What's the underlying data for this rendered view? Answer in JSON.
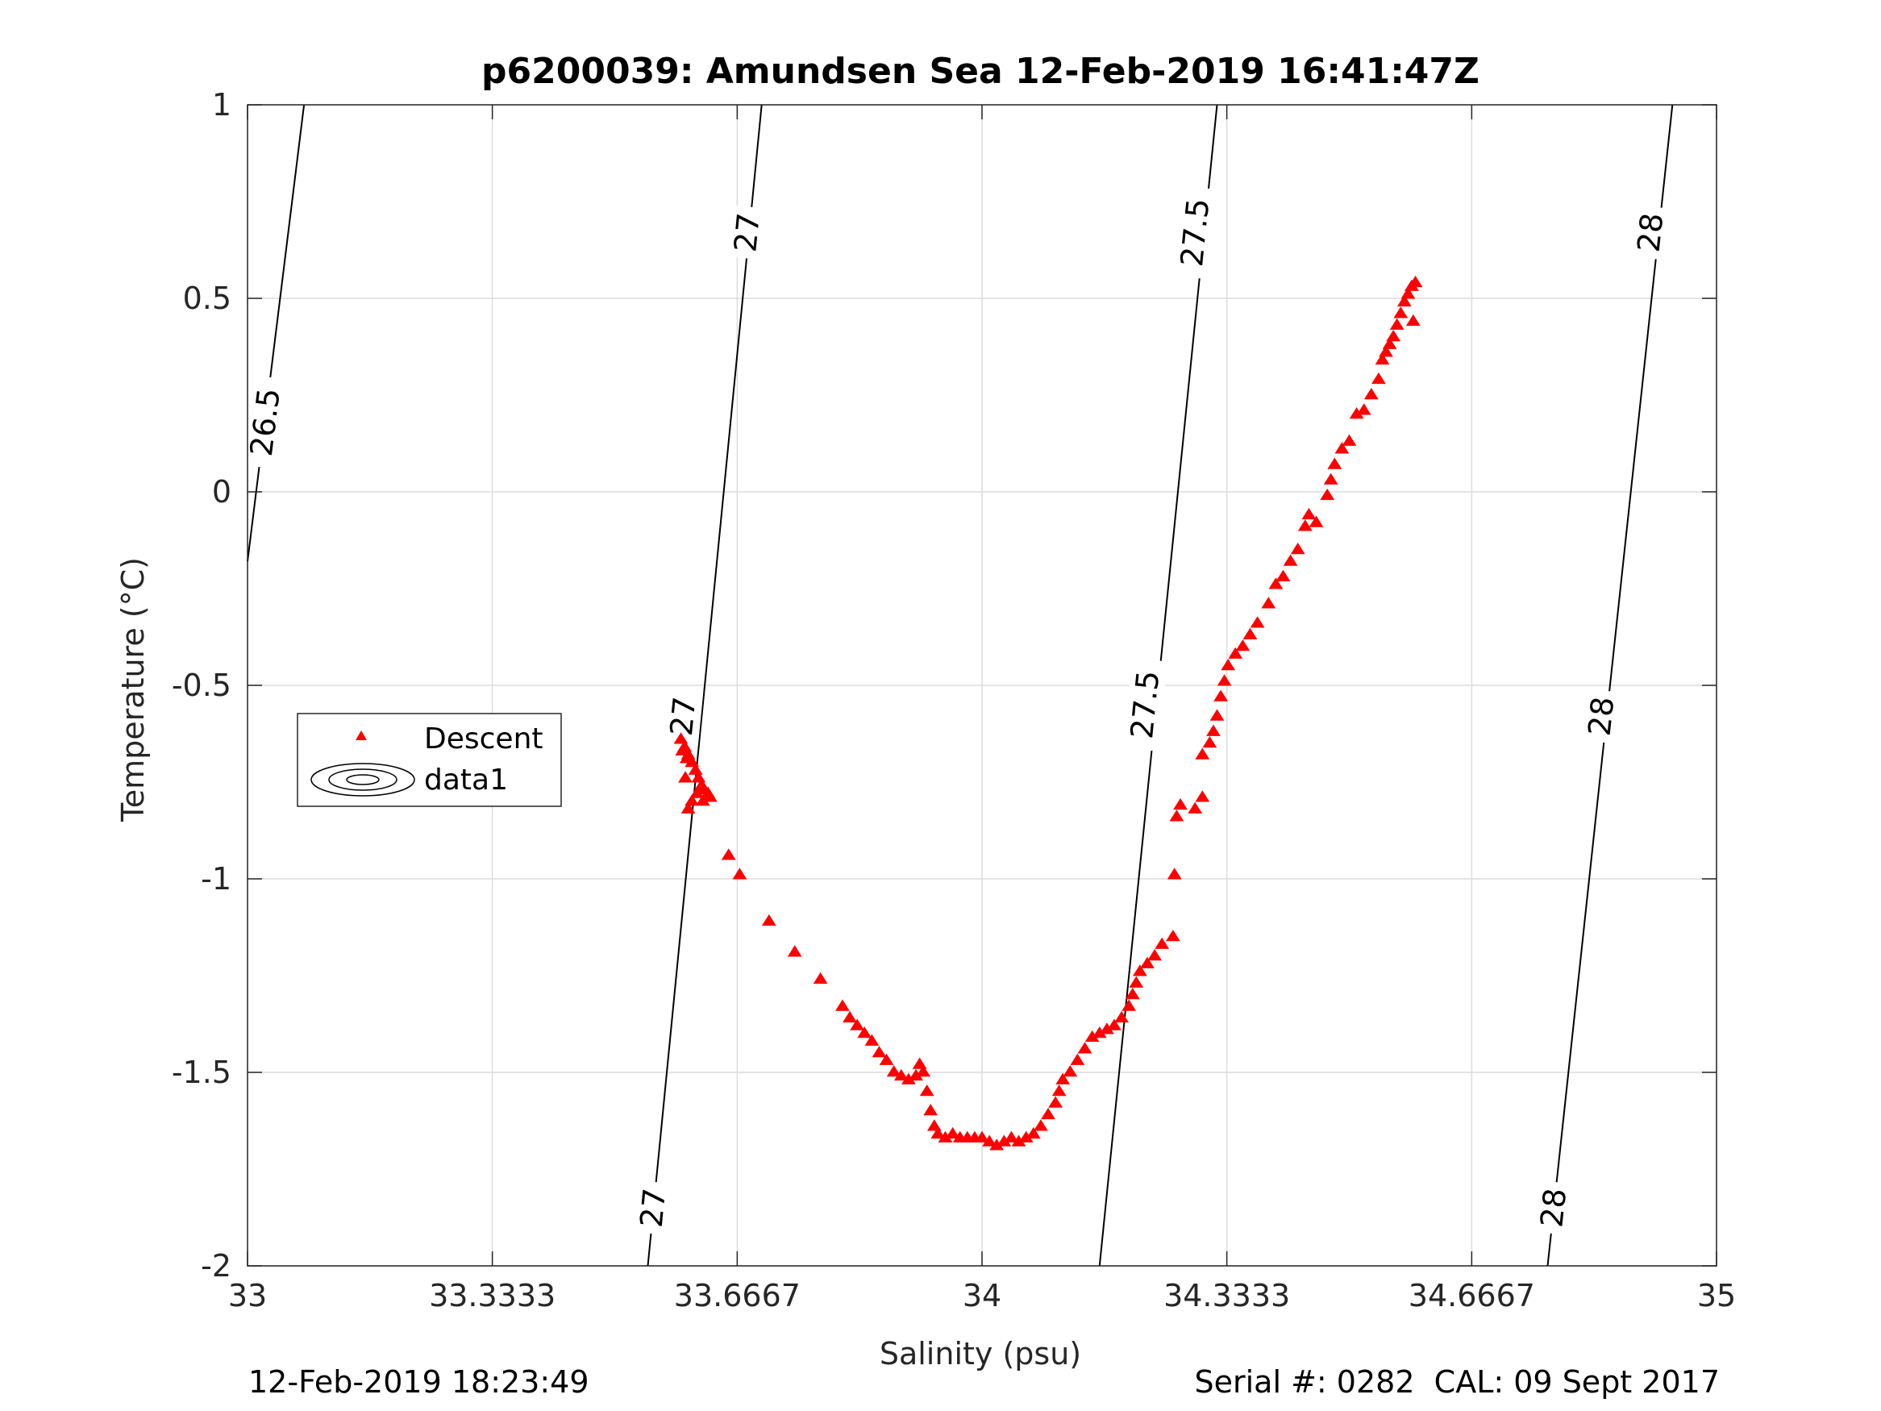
{
  "chart_data": {
    "type": "scatter",
    "title": "p6200039: Amundsen Sea 12-Feb-2019 16:41:47Z",
    "xlabel": "Salinity (psu)",
    "ylabel": "Temperature (°C)",
    "xlim": [
      33,
      35
    ],
    "ylim": [
      -2,
      1
    ],
    "xticks": [
      33,
      33.3333,
      33.6667,
      34,
      34.3333,
      34.6667,
      35
    ],
    "xtick_labels": [
      "33",
      "33.3333",
      "33.6667",
      "34",
      "34.3333",
      "34.6667",
      "35"
    ],
    "yticks": [
      -2,
      -1.5,
      -1,
      -0.5,
      0,
      0.5,
      1
    ],
    "ytick_labels": [
      "-2",
      "-1.5",
      "-1",
      "-0.5",
      "0",
      "0.5",
      "1"
    ],
    "grid": true,
    "legend": {
      "placement": "center-left",
      "entries": [
        "Descent",
        "data1"
      ]
    },
    "marker_color": "#ff0000",
    "series": [
      {
        "name": "Descent",
        "marker": "triangle",
        "points": [
          [
            33.59,
            -0.64
          ],
          [
            33.595,
            -0.66
          ],
          [
            33.6,
            -0.68
          ],
          [
            33.605,
            -0.7
          ],
          [
            33.61,
            -0.72
          ],
          [
            33.614,
            -0.74
          ],
          [
            33.618,
            -0.76
          ],
          [
            33.622,
            -0.77
          ],
          [
            33.627,
            -0.78
          ],
          [
            33.63,
            -0.79
          ],
          [
            33.62,
            -0.8
          ],
          [
            33.612,
            -0.78
          ],
          [
            33.605,
            -0.8
          ],
          [
            33.6,
            -0.82
          ],
          [
            33.596,
            -0.74
          ],
          [
            33.592,
            -0.67
          ],
          [
            33.598,
            -0.69
          ],
          [
            33.655,
            -0.94
          ],
          [
            33.67,
            -0.99
          ],
          [
            33.71,
            -1.11
          ],
          [
            33.745,
            -1.19
          ],
          [
            33.78,
            -1.26
          ],
          [
            33.81,
            -1.33
          ],
          [
            33.82,
            -1.36
          ],
          [
            33.83,
            -1.38
          ],
          [
            33.84,
            -1.4
          ],
          [
            33.85,
            -1.42
          ],
          [
            33.86,
            -1.45
          ],
          [
            33.87,
            -1.47
          ],
          [
            33.88,
            -1.5
          ],
          [
            33.89,
            -1.51
          ],
          [
            33.9,
            -1.52
          ],
          [
            33.91,
            -1.51
          ],
          [
            33.915,
            -1.48
          ],
          [
            33.92,
            -1.5
          ],
          [
            33.925,
            -1.55
          ],
          [
            33.93,
            -1.6
          ],
          [
            33.935,
            -1.64
          ],
          [
            33.94,
            -1.66
          ],
          [
            33.95,
            -1.67
          ],
          [
            33.96,
            -1.66
          ],
          [
            33.97,
            -1.67
          ],
          [
            33.98,
            -1.67
          ],
          [
            33.99,
            -1.67
          ],
          [
            34.0,
            -1.67
          ],
          [
            34.01,
            -1.68
          ],
          [
            34.02,
            -1.69
          ],
          [
            34.03,
            -1.68
          ],
          [
            34.04,
            -1.67
          ],
          [
            34.05,
            -1.68
          ],
          [
            34.06,
            -1.67
          ],
          [
            34.07,
            -1.66
          ],
          [
            34.08,
            -1.64
          ],
          [
            34.09,
            -1.61
          ],
          [
            34.1,
            -1.58
          ],
          [
            34.105,
            -1.55
          ],
          [
            34.11,
            -1.52
          ],
          [
            34.12,
            -1.5
          ],
          [
            34.13,
            -1.47
          ],
          [
            34.14,
            -1.44
          ],
          [
            34.15,
            -1.41
          ],
          [
            34.16,
            -1.4
          ],
          [
            34.17,
            -1.39
          ],
          [
            34.18,
            -1.38
          ],
          [
            34.19,
            -1.36
          ],
          [
            34.2,
            -1.33
          ],
          [
            34.205,
            -1.3
          ],
          [
            34.21,
            -1.27
          ],
          [
            34.215,
            -1.24
          ],
          [
            34.225,
            -1.22
          ],
          [
            34.235,
            -1.2
          ],
          [
            34.245,
            -1.17
          ],
          [
            34.26,
            -1.15
          ],
          [
            34.262,
            -0.99
          ],
          [
            34.265,
            -0.84
          ],
          [
            34.27,
            -0.81
          ],
          [
            34.29,
            -0.82
          ],
          [
            34.3,
            -0.79
          ],
          [
            34.3,
            -0.68
          ],
          [
            34.31,
            -0.65
          ],
          [
            34.315,
            -0.62
          ],
          [
            34.32,
            -0.58
          ],
          [
            34.325,
            -0.53
          ],
          [
            34.33,
            -0.49
          ],
          [
            34.335,
            -0.45
          ],
          [
            34.345,
            -0.42
          ],
          [
            34.355,
            -0.4
          ],
          [
            34.365,
            -0.37
          ],
          [
            34.375,
            -0.34
          ],
          [
            34.39,
            -0.29
          ],
          [
            34.4,
            -0.24
          ],
          [
            34.41,
            -0.22
          ],
          [
            34.42,
            -0.18
          ],
          [
            34.43,
            -0.15
          ],
          [
            34.44,
            -0.09
          ],
          [
            34.445,
            -0.06
          ],
          [
            34.455,
            -0.08
          ],
          [
            34.47,
            -0.01
          ],
          [
            34.475,
            0.03
          ],
          [
            34.48,
            0.07
          ],
          [
            34.49,
            0.11
          ],
          [
            34.5,
            0.13
          ],
          [
            34.51,
            0.2
          ],
          [
            34.52,
            0.21
          ],
          [
            34.53,
            0.25
          ],
          [
            34.54,
            0.29
          ],
          [
            34.545,
            0.34
          ],
          [
            34.55,
            0.36
          ],
          [
            34.555,
            0.38
          ],
          [
            34.56,
            0.4
          ],
          [
            34.565,
            0.43
          ],
          [
            34.57,
            0.46
          ],
          [
            34.575,
            0.49
          ],
          [
            34.58,
            0.51
          ],
          [
            34.585,
            0.53
          ],
          [
            34.59,
            0.54
          ],
          [
            34.587,
            0.44
          ]
        ]
      }
    ],
    "contours": [
      {
        "label": "26.5",
        "segments": [
          [
            [
              33.0,
              -0.18
            ],
            [
              33.077,
              1.0
            ]
          ]
        ],
        "labels_at": [
          [
            33.024,
            0.18
          ]
        ]
      },
      {
        "label": "27",
        "segments": [
          [
            [
              33.545,
              -2.0
            ],
            [
              33.7,
              1.0
            ]
          ]
        ],
        "labels_at": [
          [
            33.68,
            0.67
          ],
          [
            33.593,
            -0.58
          ],
          [
            33.552,
            -1.85
          ]
        ]
      },
      {
        "label": "27.5",
        "segments": [
          [
            [
              34.16,
              -2.0
            ],
            [
              34.32,
              1.0
            ]
          ]
        ],
        "labels_at": [
          [
            34.29,
            0.67
          ],
          [
            34.222,
            -0.55
          ]
        ]
      },
      {
        "label": "28",
        "segments": [
          [
            [
              34.77,
              -2.0
            ],
            [
              34.94,
              1.0
            ]
          ]
        ],
        "labels_at": [
          [
            34.91,
            0.67
          ],
          [
            34.843,
            -0.58
          ],
          [
            34.778,
            -1.85
          ]
        ]
      }
    ]
  },
  "footer": {
    "timestamp": "12-Feb-2019 18:23:49",
    "serial": "Serial #: 0282  CAL: 09 Sept 2017"
  }
}
